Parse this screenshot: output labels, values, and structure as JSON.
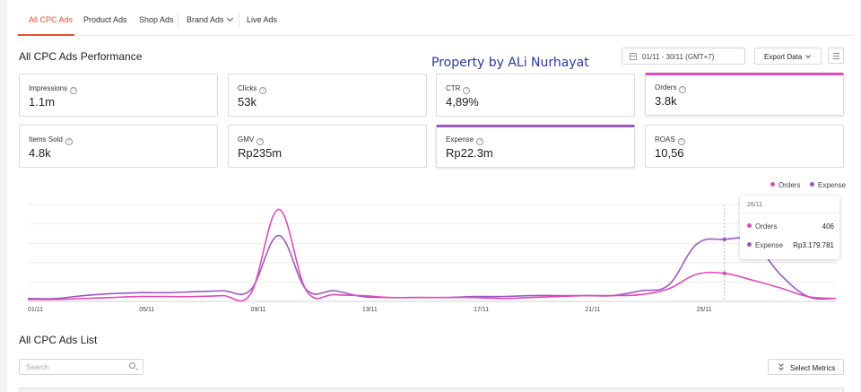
{
  "tabs": [
    {
      "label": "All CPC Ads",
      "active": true
    },
    {
      "label": "Product Ads"
    },
    {
      "label": "Shop Ads"
    },
    {
      "label": "Brand Ads"
    },
    {
      "label": "Live Ads"
    }
  ],
  "performance": {
    "title": "All CPC Ads Performance",
    "watermark": "Property by ALi Nurhayat",
    "date_range": "01/11 - 30/11 (GMT+7)",
    "export_label": "Export Data"
  },
  "metrics": [
    {
      "label": "Impressions",
      "value": "1.1m"
    },
    {
      "label": "Clicks",
      "value": "53k"
    },
    {
      "label": "CTR",
      "value": "4,89%"
    },
    {
      "label": "Orders",
      "value": "3.8k",
      "selected": true,
      "color": "#e14ab7"
    },
    {
      "label": "Items Sold",
      "value": "4.8k"
    },
    {
      "label": "GMV",
      "value": "Rp235m"
    },
    {
      "label": "Expense",
      "value": "Rp22.3m",
      "selected": true,
      "color": "#9b59c4"
    },
    {
      "label": "ROAS",
      "value": "10,56"
    }
  ],
  "chart_data": {
    "type": "line",
    "x": [
      "01/11",
      "02/11",
      "03/11",
      "04/11",
      "05/11",
      "06/11",
      "07/11",
      "08/11",
      "09/11",
      "10/11",
      "11/11",
      "12/11",
      "13/11",
      "14/11",
      "15/11",
      "16/11",
      "17/11",
      "18/11",
      "19/11",
      "20/11",
      "21/11",
      "22/11",
      "23/11",
      "24/11",
      "25/11",
      "26/11",
      "27/11",
      "28/11",
      "29/11",
      "30/11"
    ],
    "x_tick_labels": [
      "01/11",
      "05/11",
      "09/11",
      "13/11",
      "17/11",
      "21/11",
      "25/11"
    ],
    "series": [
      {
        "name": "Orders",
        "color": "#e14ab7",
        "values": [
          2,
          2,
          3,
          4,
          5,
          5,
          5,
          6,
          8,
          95,
          11,
          7,
          6,
          4,
          4,
          4,
          4,
          3,
          4,
          5,
          6,
          6,
          7,
          13,
          28,
          29,
          22,
          14,
          5,
          3
        ]
      },
      {
        "name": "Expense",
        "color": "#9b59c4",
        "values": [
          3,
          3,
          6,
          8,
          9,
          9,
          10,
          11,
          12,
          68,
          12,
          11,
          5,
          4,
          4,
          4,
          5,
          5,
          6,
          6,
          6,
          6,
          11,
          17,
          59,
          64,
          62,
          28,
          5,
          3
        ]
      }
    ],
    "legend": [
      "Orders",
      "Expense"
    ],
    "legend_position": "top-right",
    "grid": true,
    "ylim": [
      0,
      100
    ]
  },
  "tooltip": {
    "date": "26/11",
    "rows": [
      {
        "label": "Orders",
        "value": "406",
        "color": "#e14ab7"
      },
      {
        "label": "Expense",
        "value": "Rp3.179.781",
        "color": "#9b59c4"
      }
    ]
  },
  "list": {
    "title": "All CPC Ads List",
    "search_placeholder": "Search",
    "select_metrics_label": "Select Metrics"
  }
}
